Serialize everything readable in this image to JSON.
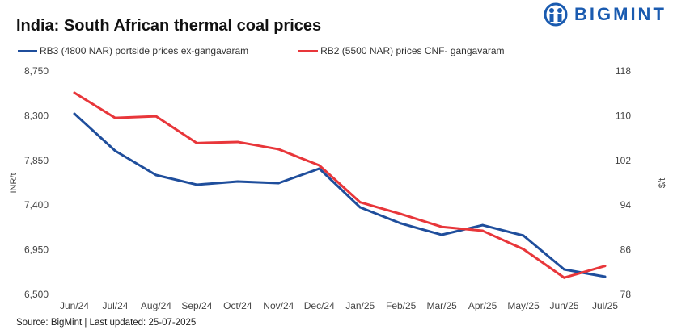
{
  "logo_text": "BIGMINT",
  "source": "Source: BigMint | Last updated: 25-07-2025",
  "chart_data": {
    "type": "line",
    "title": "India: South African thermal coal prices",
    "categories": [
      "Jun/24",
      "Jul/24",
      "Aug/24",
      "Sep/24",
      "Oct/24",
      "Nov/24",
      "Dec/24",
      "Jan/25",
      "Feb/25",
      "Mar/25",
      "Apr/25",
      "May/25",
      "Jun/25",
      "Jul/25"
    ],
    "ylabel_left": "INR/t",
    "ylabel_right": "$/t",
    "ylim_left": [
      6500,
      8750
    ],
    "yticks_left": [
      "6,500",
      "6,950",
      "7,400",
      "7,850",
      "8,300",
      "8,750"
    ],
    "ylim_right": [
      78,
      118
    ],
    "yticks_right": [
      "78",
      "86",
      "94",
      "102",
      "110",
      "118"
    ],
    "grid": false,
    "legend_position": "top-left",
    "series": [
      {
        "name": "RB3 (4800 NAR) portside prices ex-gangavaram",
        "axis": "left",
        "color": "#1f4e9c",
        "values": [
          8320,
          7946,
          7702,
          7605,
          7637,
          7621,
          7767,
          7377,
          7215,
          7101,
          7198,
          7093,
          6752,
          6679
        ]
      },
      {
        "name": "RB2 (5500 NAR) prices CNF- gangavaram",
        "axis": "right",
        "color": "#e8363a",
        "values": [
          114.1,
          109.6,
          109.9,
          105.1,
          105.3,
          104.0,
          101.1,
          94.5,
          92.4,
          90.1,
          89.4,
          86.1,
          81.0,
          83.1
        ]
      }
    ]
  }
}
